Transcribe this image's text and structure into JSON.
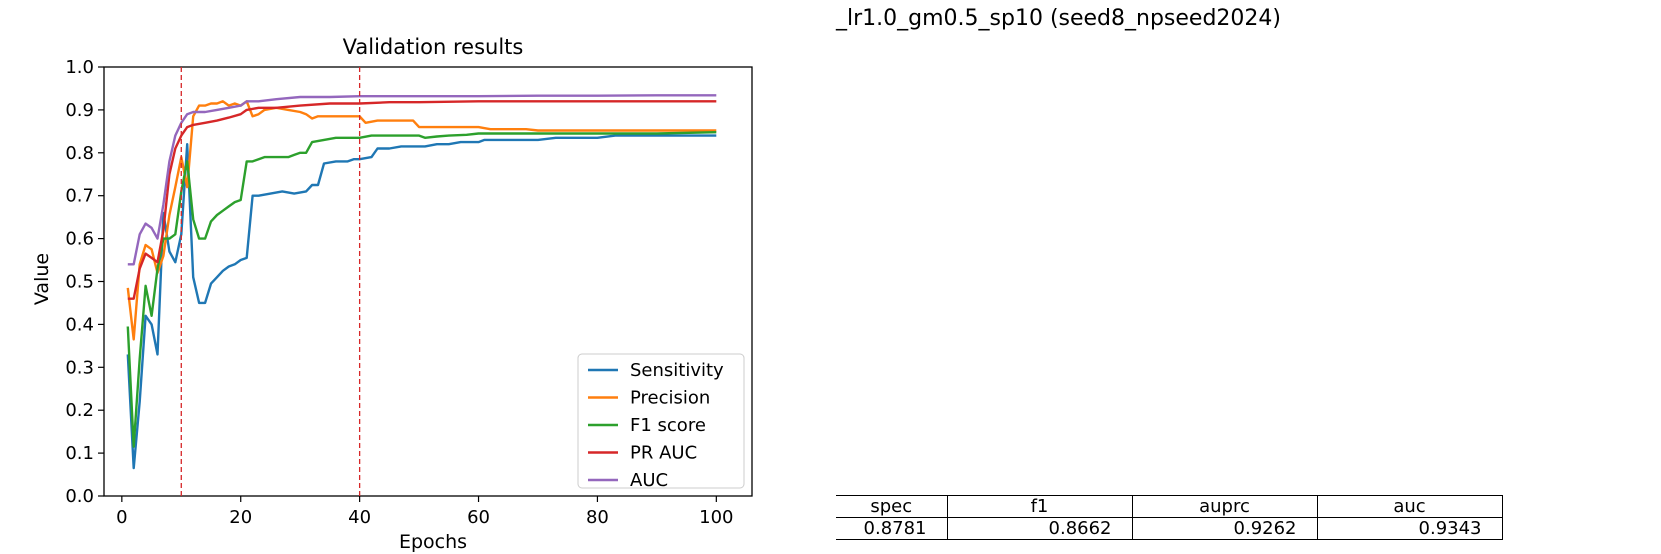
{
  "run_title": "_lr1.0_gm0.5_sp10 (seed8_npseed2024)",
  "metrics_table": {
    "headers": [
      "spec",
      "f1",
      "auprc",
      "auc"
    ],
    "values": [
      "0.8781",
      "0.8662",
      "0.9262",
      "0.9343"
    ]
  },
  "chart_data": {
    "type": "line",
    "title": "Validation results",
    "xlabel": "Epochs",
    "ylabel": "Value",
    "xlim": [
      -3,
      106
    ],
    "ylim": [
      0.0,
      1.0
    ],
    "xticks": [
      0,
      20,
      40,
      60,
      80,
      100
    ],
    "yticks": [
      0.0,
      0.1,
      0.2,
      0.3,
      0.4,
      0.5,
      0.6,
      0.7,
      0.8,
      0.9,
      1.0
    ],
    "grid": false,
    "legend_position": "lower-right",
    "vlines": [
      {
        "x": 10,
        "color": "#d62728",
        "style": "dashed"
      },
      {
        "x": 40,
        "color": "#d62728",
        "style": "dashed"
      }
    ],
    "series": [
      {
        "name": "Sensitivity",
        "color": "#1f77b4",
        "points": [
          [
            1,
            0.33
          ],
          [
            2,
            0.065
          ],
          [
            3,
            0.22
          ],
          [
            4,
            0.42
          ],
          [
            5,
            0.4
          ],
          [
            6,
            0.33
          ],
          [
            7,
            0.66
          ],
          [
            8,
            0.57
          ],
          [
            9,
            0.545
          ],
          [
            10,
            0.61
          ],
          [
            11,
            0.82
          ],
          [
            12,
            0.51
          ],
          [
            13,
            0.45
          ],
          [
            14,
            0.45
          ],
          [
            15,
            0.495
          ],
          [
            16,
            0.51
          ],
          [
            17,
            0.525
          ],
          [
            18,
            0.535
          ],
          [
            19,
            0.54
          ],
          [
            20,
            0.55
          ],
          [
            21,
            0.555
          ],
          [
            22,
            0.7
          ],
          [
            23,
            0.7
          ],
          [
            25,
            0.705
          ],
          [
            27,
            0.71
          ],
          [
            29,
            0.705
          ],
          [
            31,
            0.71
          ],
          [
            32,
            0.725
          ],
          [
            33,
            0.725
          ],
          [
            34,
            0.775
          ],
          [
            36,
            0.78
          ],
          [
            38,
            0.78
          ],
          [
            39,
            0.785
          ],
          [
            40,
            0.785
          ],
          [
            42,
            0.79
          ],
          [
            43,
            0.81
          ],
          [
            45,
            0.81
          ],
          [
            47,
            0.815
          ],
          [
            49,
            0.815
          ],
          [
            51,
            0.815
          ],
          [
            53,
            0.82
          ],
          [
            55,
            0.82
          ],
          [
            57,
            0.825
          ],
          [
            59,
            0.825
          ],
          [
            60,
            0.825
          ],
          [
            61,
            0.83
          ],
          [
            65,
            0.83
          ],
          [
            69,
            0.83
          ],
          [
            70,
            0.83
          ],
          [
            73,
            0.835
          ],
          [
            77,
            0.835
          ],
          [
            80,
            0.835
          ],
          [
            83,
            0.84
          ],
          [
            90,
            0.84
          ],
          [
            100,
            0.84
          ]
        ]
      },
      {
        "name": "Precision",
        "color": "#ff7f0e",
        "points": [
          [
            1,
            0.485
          ],
          [
            2,
            0.365
          ],
          [
            3,
            0.54
          ],
          [
            4,
            0.585
          ],
          [
            5,
            0.575
          ],
          [
            6,
            0.52
          ],
          [
            7,
            0.56
          ],
          [
            8,
            0.655
          ],
          [
            9,
            0.72
          ],
          [
            10,
            0.79
          ],
          [
            11,
            0.72
          ],
          [
            12,
            0.885
          ],
          [
            13,
            0.91
          ],
          [
            14,
            0.91
          ],
          [
            15,
            0.915
          ],
          [
            16,
            0.915
          ],
          [
            17,
            0.92
          ],
          [
            18,
            0.91
          ],
          [
            19,
            0.915
          ],
          [
            20,
            0.91
          ],
          [
            21,
            0.92
          ],
          [
            22,
            0.885
          ],
          [
            23,
            0.89
          ],
          [
            24,
            0.9
          ],
          [
            26,
            0.905
          ],
          [
            28,
            0.9
          ],
          [
            30,
            0.895
          ],
          [
            31,
            0.89
          ],
          [
            32,
            0.88
          ],
          [
            33,
            0.885
          ],
          [
            35,
            0.885
          ],
          [
            37,
            0.885
          ],
          [
            39,
            0.885
          ],
          [
            40,
            0.885
          ],
          [
            41,
            0.87
          ],
          [
            43,
            0.875
          ],
          [
            45,
            0.875
          ],
          [
            47,
            0.875
          ],
          [
            49,
            0.875
          ],
          [
            50,
            0.86
          ],
          [
            52,
            0.86
          ],
          [
            54,
            0.86
          ],
          [
            56,
            0.86
          ],
          [
            58,
            0.86
          ],
          [
            60,
            0.86
          ],
          [
            62,
            0.855
          ],
          [
            65,
            0.855
          ],
          [
            68,
            0.855
          ],
          [
            70,
            0.852
          ],
          [
            75,
            0.852
          ],
          [
            80,
            0.852
          ],
          [
            90,
            0.852
          ],
          [
            100,
            0.852
          ]
        ]
      },
      {
        "name": "F1 score",
        "color": "#2ca02c",
        "points": [
          [
            1,
            0.395
          ],
          [
            2,
            0.115
          ],
          [
            3,
            0.32
          ],
          [
            4,
            0.49
          ],
          [
            5,
            0.42
          ],
          [
            6,
            0.53
          ],
          [
            7,
            0.6
          ],
          [
            8,
            0.6
          ],
          [
            9,
            0.61
          ],
          [
            10,
            0.71
          ],
          [
            11,
            0.78
          ],
          [
            12,
            0.645
          ],
          [
            13,
            0.6
          ],
          [
            14,
            0.6
          ],
          [
            15,
            0.64
          ],
          [
            16,
            0.655
          ],
          [
            17,
            0.665
          ],
          [
            18,
            0.675
          ],
          [
            19,
            0.685
          ],
          [
            20,
            0.69
          ],
          [
            21,
            0.78
          ],
          [
            22,
            0.78
          ],
          [
            23,
            0.785
          ],
          [
            24,
            0.79
          ],
          [
            26,
            0.79
          ],
          [
            28,
            0.79
          ],
          [
            29,
            0.795
          ],
          [
            30,
            0.8
          ],
          [
            31,
            0.8
          ],
          [
            32,
            0.825
          ],
          [
            34,
            0.83
          ],
          [
            36,
            0.835
          ],
          [
            38,
            0.835
          ],
          [
            40,
            0.835
          ],
          [
            42,
            0.84
          ],
          [
            45,
            0.84
          ],
          [
            48,
            0.84
          ],
          [
            50,
            0.84
          ],
          [
            51,
            0.835
          ],
          [
            53,
            0.838
          ],
          [
            55,
            0.84
          ],
          [
            58,
            0.842
          ],
          [
            60,
            0.845
          ],
          [
            65,
            0.845
          ],
          [
            70,
            0.845
          ],
          [
            80,
            0.845
          ],
          [
            90,
            0.845
          ],
          [
            100,
            0.848
          ]
        ]
      },
      {
        "name": "PR AUC",
        "color": "#d62728",
        "points": [
          [
            1,
            0.46
          ],
          [
            2,
            0.46
          ],
          [
            3,
            0.53
          ],
          [
            4,
            0.565
          ],
          [
            5,
            0.555
          ],
          [
            6,
            0.545
          ],
          [
            7,
            0.62
          ],
          [
            8,
            0.75
          ],
          [
            9,
            0.81
          ],
          [
            10,
            0.84
          ],
          [
            11,
            0.86
          ],
          [
            12,
            0.865
          ],
          [
            14,
            0.87
          ],
          [
            16,
            0.875
          ],
          [
            18,
            0.882
          ],
          [
            20,
            0.89
          ],
          [
            21,
            0.9
          ],
          [
            23,
            0.905
          ],
          [
            26,
            0.905
          ],
          [
            30,
            0.91
          ],
          [
            35,
            0.915
          ],
          [
            40,
            0.915
          ],
          [
            45,
            0.918
          ],
          [
            50,
            0.918
          ],
          [
            60,
            0.92
          ],
          [
            70,
            0.92
          ],
          [
            80,
            0.92
          ],
          [
            90,
            0.92
          ],
          [
            100,
            0.92
          ]
        ]
      },
      {
        "name": "AUC",
        "color": "#9467bd",
        "points": [
          [
            1,
            0.54
          ],
          [
            2,
            0.54
          ],
          [
            3,
            0.61
          ],
          [
            4,
            0.635
          ],
          [
            5,
            0.625
          ],
          [
            6,
            0.6
          ],
          [
            7,
            0.68
          ],
          [
            8,
            0.78
          ],
          [
            9,
            0.84
          ],
          [
            10,
            0.87
          ],
          [
            11,
            0.89
          ],
          [
            12,
            0.895
          ],
          [
            14,
            0.895
          ],
          [
            16,
            0.9
          ],
          [
            18,
            0.905
          ],
          [
            20,
            0.91
          ],
          [
            21,
            0.92
          ],
          [
            23,
            0.92
          ],
          [
            26,
            0.925
          ],
          [
            30,
            0.93
          ],
          [
            35,
            0.93
          ],
          [
            40,
            0.932
          ],
          [
            50,
            0.932
          ],
          [
            60,
            0.932
          ],
          [
            70,
            0.933
          ],
          [
            80,
            0.933
          ],
          [
            90,
            0.934
          ],
          [
            100,
            0.934
          ]
        ]
      }
    ]
  }
}
